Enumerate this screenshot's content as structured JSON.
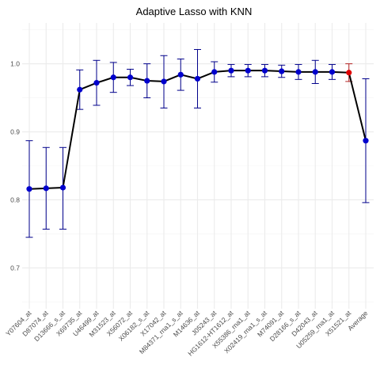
{
  "chart_data": {
    "type": "line",
    "title": "Adaptive Lasso with KNN",
    "xlabel": "",
    "ylabel": "",
    "ylim": [
      0.64,
      1.06
    ],
    "yticks": [
      0.7,
      0.8,
      0.9,
      1.0
    ],
    "y_tick_labels": [
      "0.7",
      "0.8",
      "0.9",
      "1.0"
    ],
    "grid": true,
    "categories": [
      "Y07604_at",
      "D87074_at",
      "D13666_s_at",
      "X69735_at",
      "U46499_at",
      "M31523_at",
      "X56072_at",
      "X06182_s_at",
      "X17042_at",
      "M84371_rna1_s_at",
      "M14636_at",
      "J05243_at",
      "HG1612-HT1612_at",
      "X55386_rna1_at",
      "X02419_rna1_s_at",
      "M74091_at",
      "D28166_s_at",
      "D42043_at",
      "U05259_rna1_at",
      "X51521_at",
      "Average"
    ],
    "series": [
      {
        "values": [
          0.816,
          0.817,
          0.818,
          0.962,
          0.972,
          0.98,
          0.98,
          0.975,
          0.974,
          0.984,
          0.978,
          0.988,
          0.99,
          0.99,
          0.99,
          0.989,
          0.988,
          0.988,
          0.988,
          0.987,
          0.887
        ],
        "lower": [
          0.745,
          0.757,
          0.757,
          0.933,
          0.939,
          0.958,
          0.968,
          0.95,
          0.935,
          0.961,
          0.935,
          0.973,
          0.981,
          0.981,
          0.981,
          0.98,
          0.977,
          0.971,
          0.977,
          0.974,
          0.796
        ],
        "upper": [
          0.887,
          0.877,
          0.877,
          0.991,
          1.005,
          1.002,
          0.992,
          1.0,
          1.012,
          1.007,
          1.021,
          1.003,
          0.999,
          0.999,
          0.999,
          0.998,
          0.999,
          1.005,
          0.999,
          1.0,
          0.978
        ]
      }
    ],
    "colors": {
      "point": "#0000cd",
      "highlight_point": "#e00000",
      "errorbar": "#00008b",
      "errorbar_highlight": "#b22222",
      "line": "#000000",
      "grid_major": "#ebebeb",
      "grid_minor": "#f5f5f5"
    },
    "highlight_index": 19
  }
}
